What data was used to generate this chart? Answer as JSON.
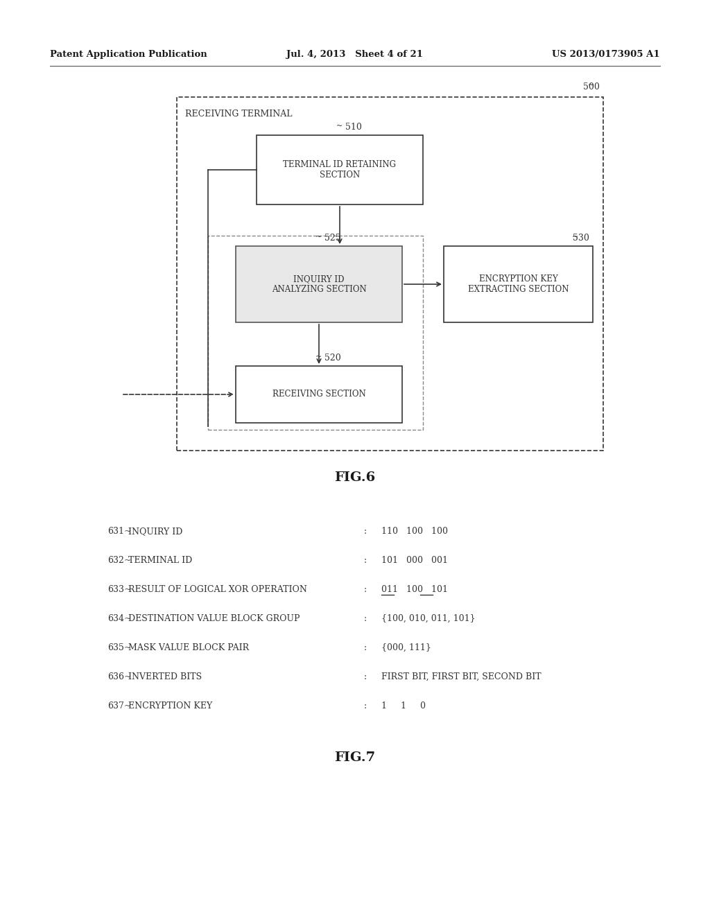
{
  "bg_color": "#ffffff",
  "header_left": "Patent Application Publication",
  "header_mid": "Jul. 4, 2013   Sheet 4 of 21",
  "header_right": "US 2013/0173905 A1",
  "fig6_label": "FIG.6",
  "fig7_label": "FIG.7",
  "outer_box_label": "RECEIVING TERMINAL",
  "outer_box_ref": "500",
  "box510_label": "TERMINAL ID RETAINING\nSECTION",
  "box510_ref": "510",
  "box525_label": "INQUIRY ID\nANALYZING SECTION",
  "box525_ref": "525",
  "box530_label": "ENCRYPTION KEY\nEXTRACTING SECTION",
  "box530_ref": "530",
  "box520_label": "RECEIVING SECTION",
  "box520_ref": "520",
  "table_rows": [
    {
      "ref": "631~",
      "label": "INQUIRY ID",
      "colon": ":",
      "value": "110   100   100"
    },
    {
      "ref": "632~",
      "label": "TERMINAL ID",
      "colon": ":",
      "value": "101   000   001"
    },
    {
      "ref": "633~",
      "label": "RESULT OF LOGICAL XOR OPERATION",
      "colon": ":",
      "value": "011   100   101"
    },
    {
      "ref": "634~",
      "label": "DESTINATION VALUE BLOCK GROUP",
      "colon": ":",
      "value": "{100, 010, 011, 101}"
    },
    {
      "ref": "635~",
      "label": "MASK VALUE BLOCK PAIR",
      "colon": ":",
      "value": "{000, 111}"
    },
    {
      "ref": "636~",
      "label": "INVERTED BITS",
      "colon": ":",
      "value": "FIRST BIT, FIRST BIT, SECOND BIT"
    },
    {
      "ref": "637~",
      "label": "ENCRYPTION KEY",
      "colon": ":",
      "value": "1     1     0"
    }
  ],
  "xor_underlines": [
    {
      "text": "011",
      "col": 0
    },
    {
      "text": "101",
      "col": 2
    }
  ]
}
